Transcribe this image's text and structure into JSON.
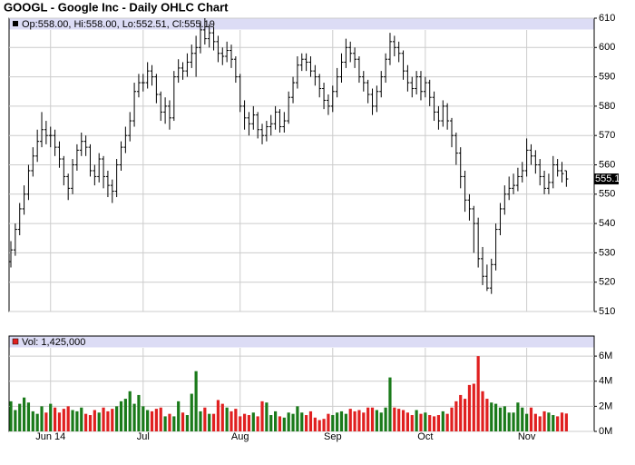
{
  "chart_data": {
    "type": "ohlc",
    "title": "GOOGL - Google Inc - Daily OHLC Chart",
    "legend": "Op:558.00, Hi:558.00, Lo:552.51, Cl:555.19",
    "color": "#000000",
    "grid": true,
    "categories": [
      null,
      null,
      null,
      null,
      null,
      null,
      null,
      null,
      null,
      "Jun 14",
      null,
      null,
      null,
      null,
      null,
      null,
      null,
      null,
      null,
      null,
      null,
      null,
      null,
      null,
      null,
      null,
      null,
      null,
      null,
      null,
      "Jul",
      null,
      null,
      null,
      null,
      null,
      null,
      null,
      null,
      null,
      null,
      null,
      null,
      null,
      null,
      null,
      null,
      null,
      null,
      null,
      null,
      null,
      "Aug",
      null,
      null,
      null,
      null,
      null,
      null,
      null,
      null,
      null,
      null,
      null,
      null,
      null,
      null,
      null,
      null,
      null,
      null,
      null,
      null,
      "Sep",
      null,
      null,
      null,
      null,
      null,
      null,
      null,
      null,
      null,
      null,
      null,
      null,
      null,
      null,
      null,
      null,
      null,
      null,
      null,
      null,
      "Oct",
      null,
      null,
      null,
      null,
      null,
      null,
      null,
      null,
      null,
      null,
      null,
      null,
      null,
      null,
      null,
      null,
      null,
      null,
      null,
      null,
      null,
      null,
      "Nov",
      null,
      null,
      null,
      null,
      null,
      null,
      null,
      null,
      null
    ],
    "open": [
      527,
      531,
      538,
      545,
      550,
      558,
      563,
      568,
      572,
      570,
      570,
      566,
      562,
      556,
      552,
      560,
      565,
      568,
      566,
      558,
      556,
      562,
      556,
      553,
      551,
      560,
      566,
      570,
      575,
      585,
      588,
      588,
      592,
      590,
      584,
      578,
      580,
      576,
      590,
      593,
      592,
      595,
      598,
      600,
      606,
      603,
      605,
      602,
      598,
      597,
      599,
      596,
      590,
      580,
      576,
      574,
      577,
      572,
      570,
      573,
      574,
      578,
      573,
      575,
      583,
      588,
      594,
      596,
      595,
      592,
      590,
      586,
      582,
      580,
      585,
      590,
      595,
      600,
      598,
      596,
      590,
      588,
      584,
      580,
      585,
      590,
      596,
      602,
      600,
      598,
      592,
      588,
      586,
      590,
      585,
      588,
      583,
      578,
      575,
      580,
      575,
      570,
      564,
      556,
      548,
      545,
      540,
      528,
      522,
      518,
      526,
      538,
      545,
      550,
      552,
      553,
      556,
      558,
      565,
      563,
      560,
      556,
      552,
      554,
      560,
      558,
      558
    ],
    "high": [
      534,
      540,
      547,
      553,
      560,
      566,
      572,
      578,
      575,
      573,
      572,
      568,
      563,
      557,
      562,
      567,
      571,
      570,
      567,
      560,
      564,
      563,
      558,
      555,
      562,
      568,
      573,
      578,
      588,
      591,
      591,
      595,
      594,
      591,
      585,
      583,
      582,
      592,
      596,
      595,
      598,
      601,
      604,
      609,
      610,
      608,
      607,
      604,
      600,
      602,
      601,
      597,
      591,
      582,
      578,
      580,
      578,
      574,
      575,
      577,
      580,
      579,
      578,
      585,
      590,
      597,
      598,
      598,
      597,
      594,
      591,
      588,
      584,
      587,
      593,
      598,
      603,
      602,
      600,
      597,
      592,
      589,
      586,
      587,
      592,
      598,
      605,
      604,
      602,
      599,
      594,
      590,
      592,
      592,
      590,
      589,
      585,
      580,
      582,
      581,
      576,
      571,
      566,
      558,
      550,
      546,
      542,
      532,
      526,
      528,
      540,
      547,
      553,
      556,
      557,
      559,
      561,
      569,
      567,
      565,
      562,
      558,
      557,
      563,
      562,
      561,
      558
    ],
    "low": [
      525,
      529,
      536,
      543,
      548,
      556,
      561,
      566,
      567,
      566,
      563,
      559,
      553,
      548,
      550,
      558,
      563,
      563,
      556,
      553,
      554,
      552,
      549,
      547,
      549,
      558,
      564,
      568,
      573,
      583,
      585,
      586,
      587,
      581,
      575,
      574,
      572,
      575,
      588,
      589,
      590,
      593,
      590,
      598,
      601,
      600,
      599,
      595,
      594,
      595,
      593,
      588,
      578,
      572,
      570,
      572,
      569,
      567,
      568,
      570,
      572,
      571,
      571,
      574,
      581,
      586,
      592,
      592,
      590,
      587,
      583,
      579,
      577,
      578,
      583,
      588,
      593,
      595,
      593,
      588,
      585,
      581,
      577,
      578,
      583,
      588,
      594,
      597,
      595,
      589,
      585,
      583,
      584,
      582,
      583,
      580,
      575,
      572,
      573,
      572,
      566,
      560,
      552,
      544,
      541,
      530,
      525,
      519,
      517,
      516,
      524,
      536,
      543,
      548,
      550,
      551,
      554,
      556,
      560,
      557,
      553,
      550,
      550,
      552,
      556,
      554,
      552.51
    ],
    "close": [
      531,
      538,
      545,
      550,
      558,
      563,
      568,
      572,
      570,
      570,
      566,
      562,
      556,
      552,
      560,
      565,
      568,
      566,
      558,
      556,
      562,
      556,
      553,
      551,
      560,
      566,
      570,
      575,
      585,
      588,
      588,
      592,
      590,
      584,
      578,
      580,
      576,
      590,
      593,
      592,
      595,
      598,
      600,
      606,
      603,
      605,
      602,
      598,
      597,
      599,
      596,
      590,
      580,
      576,
      574,
      577,
      572,
      570,
      573,
      574,
      578,
      573,
      575,
      583,
      588,
      594,
      596,
      595,
      592,
      590,
      586,
      582,
      580,
      585,
      590,
      595,
      600,
      598,
      596,
      590,
      588,
      584,
      580,
      585,
      590,
      596,
      602,
      600,
      598,
      592,
      588,
      586,
      590,
      585,
      588,
      583,
      578,
      575,
      580,
      575,
      570,
      564,
      556,
      548,
      545,
      540,
      528,
      522,
      518,
      526,
      538,
      545,
      550,
      552,
      553,
      556,
      558,
      565,
      563,
      560,
      556,
      552,
      554,
      560,
      558,
      557,
      555.19
    ],
    "ylim": [
      510,
      610
    ],
    "yticks": [
      510,
      520,
      530,
      540,
      550,
      560,
      570,
      580,
      590,
      600,
      610
    ],
    "volume": {
      "legend": "Vol: 1,425,000",
      "up_color": "#1a7a1a",
      "down_color": "#e02020",
      "values": [
        2.4,
        1.7,
        2.2,
        2.7,
        2.3,
        1.6,
        1.4,
        2.0,
        1.5,
        2.2,
        1.9,
        1.5,
        1.8,
        2.0,
        1.7,
        1.6,
        1.9,
        1.4,
        1.3,
        1.7,
        1.5,
        1.9,
        1.6,
        1.8,
        2.0,
        2.4,
        2.6,
        3.2,
        2.2,
        2.9,
        2.0,
        1.7,
        1.6,
        1.8,
        1.9,
        1.2,
        1.4,
        1.2,
        2.4,
        1.5,
        1.3,
        3.0,
        4.8,
        1.6,
        1.9,
        1.4,
        1.4,
        2.5,
        2.2,
        1.9,
        1.6,
        1.8,
        1.2,
        1.4,
        1.3,
        1.5,
        1.2,
        2.4,
        2.3,
        1.3,
        1.6,
        1.2,
        1.1,
        1.5,
        1.4,
        2.0,
        1.5,
        1.3,
        1.6,
        1.1,
        0.9,
        1.0,
        1.4,
        1.3,
        1.5,
        1.6,
        1.4,
        1.8,
        1.6,
        1.7,
        1.5,
        1.9,
        1.9,
        1.7,
        1.5,
        1.9,
        4.3,
        1.9,
        1.8,
        1.7,
        1.5,
        1.3,
        1.7,
        1.4,
        1.5,
        1.3,
        1.2,
        1.3,
        1.6,
        1.4,
        1.9,
        2.4,
        2.9,
        2.6,
        3.7,
        3.8,
        6.0,
        3.2,
        2.6,
        2.3,
        2.2,
        1.9,
        2.0,
        1.5,
        1.5,
        2.3,
        1.9,
        1.4,
        1.9,
        1.4,
        1.2,
        1.6,
        1.5,
        1.3,
        1.2,
        1.5,
        1.425
      ],
      "ylim": [
        0,
        7.6
      ],
      "yticks": [
        {
          "value": 0,
          "label": "0M"
        },
        {
          "value": 2,
          "label": "2M"
        },
        {
          "value": 4,
          "label": "4M"
        },
        {
          "value": 6,
          "label": "6M"
        }
      ]
    }
  }
}
